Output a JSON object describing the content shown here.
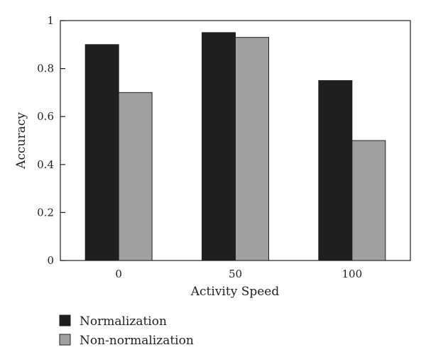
{
  "chart_data": {
    "type": "bar",
    "categories": [
      "0",
      "50",
      "100"
    ],
    "series": [
      {
        "name": "Normalization",
        "values": [
          0.9,
          0.95,
          0.75
        ],
        "color": "#1f1f1f"
      },
      {
        "name": "Non-normalization",
        "values": [
          0.7,
          0.93,
          0.5
        ],
        "color": "#a0a0a0"
      }
    ],
    "xlabel": "Activity Speed",
    "ylabel": "Accuracy",
    "ylim": [
      0,
      1
    ],
    "yticks": [
      "0",
      "0.2",
      "0.4",
      "0.6",
      "0.8",
      "1"
    ],
    "grid": false,
    "legend_position": "bottom-left"
  }
}
